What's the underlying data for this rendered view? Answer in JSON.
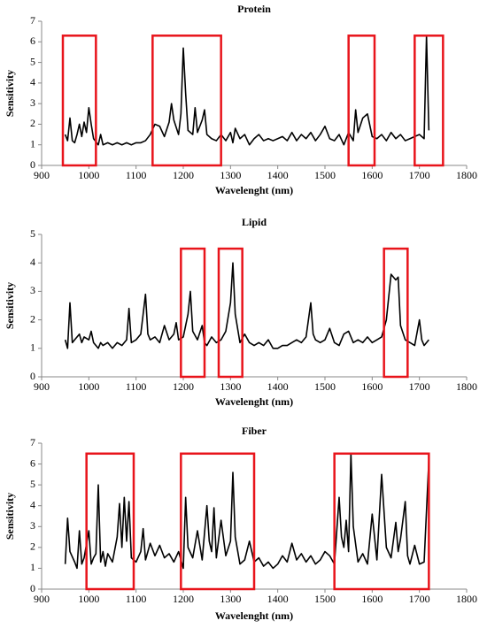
{
  "chart_data": [
    {
      "type": "line",
      "title": "Protein",
      "xlabel": "Wavelenght (nm)",
      "ylabel": "Sensitivity",
      "xlim": [
        900,
        1800
      ],
      "xticks": [
        900,
        1000,
        1100,
        1200,
        1300,
        1400,
        1500,
        1600,
        1700,
        1800
      ],
      "ylim": [
        0,
        7
      ],
      "yticks": [
        0,
        1,
        2,
        3,
        4,
        5,
        6,
        7
      ],
      "color": "#000000",
      "highlight_color": "#e8141b",
      "x": [
        950,
        955,
        960,
        965,
        970,
        975,
        980,
        985,
        990,
        995,
        1000,
        1005,
        1010,
        1020,
        1025,
        1030,
        1040,
        1050,
        1060,
        1070,
        1080,
        1090,
        1100,
        1110,
        1120,
        1130,
        1140,
        1150,
        1160,
        1170,
        1175,
        1180,
        1190,
        1195,
        1200,
        1205,
        1210,
        1220,
        1225,
        1230,
        1240,
        1245,
        1250,
        1260,
        1270,
        1280,
        1290,
        1300,
        1305,
        1310,
        1320,
        1330,
        1340,
        1350,
        1360,
        1370,
        1380,
        1390,
        1400,
        1410,
        1420,
        1430,
        1440,
        1450,
        1460,
        1470,
        1480,
        1490,
        1500,
        1510,
        1520,
        1530,
        1540,
        1550,
        1560,
        1565,
        1570,
        1580,
        1590,
        1600,
        1610,
        1620,
        1630,
        1640,
        1650,
        1660,
        1670,
        1680,
        1690,
        1700,
        1710,
        1715,
        1720
      ],
      "values": [
        1.5,
        1.2,
        2.3,
        1.2,
        1.1,
        1.5,
        2.0,
        1.4,
        2.1,
        1.6,
        2.8,
        2.0,
        1.3,
        1.0,
        1.5,
        1.0,
        1.1,
        1.0,
        1.1,
        1.0,
        1.1,
        1.0,
        1.1,
        1.1,
        1.2,
        1.5,
        2.0,
        1.9,
        1.4,
        2.1,
        3.0,
        2.2,
        1.5,
        2.5,
        5.7,
        3.5,
        1.7,
        1.5,
        2.8,
        1.6,
        2.2,
        2.7,
        1.5,
        1.3,
        1.2,
        1.5,
        1.2,
        1.6,
        1.1,
        1.8,
        1.3,
        1.5,
        1.0,
        1.3,
        1.5,
        1.2,
        1.3,
        1.2,
        1.3,
        1.4,
        1.2,
        1.6,
        1.2,
        1.5,
        1.3,
        1.6,
        1.2,
        1.5,
        1.9,
        1.3,
        1.2,
        1.5,
        1.0,
        1.6,
        1.2,
        2.7,
        1.6,
        2.3,
        2.5,
        1.4,
        1.3,
        1.5,
        1.2,
        1.6,
        1.3,
        1.5,
        1.2,
        1.3,
        1.4,
        1.5,
        1.3,
        6.3,
        1.7
      ],
      "highlights": [
        {
          "x": [
            945,
            1015
          ],
          "y": [
            0,
            6.3
          ]
        },
        {
          "x": [
            1135,
            1280
          ],
          "y": [
            0,
            6.3
          ]
        },
        {
          "x": [
            1550,
            1605
          ],
          "y": [
            0,
            6.3
          ]
        },
        {
          "x": [
            1690,
            1750
          ],
          "y": [
            0,
            6.3
          ]
        }
      ]
    },
    {
      "type": "line",
      "title": "Lipid",
      "xlabel": "Wavelenght (nm)",
      "ylabel": "Sensitivity",
      "xlim": [
        900,
        1800
      ],
      "xticks": [
        900,
        1000,
        1100,
        1200,
        1300,
        1400,
        1500,
        1600,
        1700,
        1800
      ],
      "ylim": [
        0,
        5
      ],
      "yticks": [
        0,
        1,
        2,
        3,
        4,
        5
      ],
      "color": "#000000",
      "highlight_color": "#e8141b",
      "x": [
        950,
        955,
        960,
        965,
        970,
        980,
        985,
        990,
        1000,
        1005,
        1010,
        1020,
        1025,
        1030,
        1040,
        1050,
        1060,
        1070,
        1080,
        1085,
        1090,
        1100,
        1110,
        1120,
        1125,
        1130,
        1140,
        1150,
        1160,
        1170,
        1180,
        1185,
        1190,
        1200,
        1210,
        1215,
        1220,
        1230,
        1240,
        1245,
        1250,
        1260,
        1270,
        1280,
        1290,
        1300,
        1305,
        1310,
        1320,
        1330,
        1340,
        1350,
        1360,
        1370,
        1380,
        1390,
        1400,
        1410,
        1420,
        1430,
        1440,
        1450,
        1460,
        1470,
        1475,
        1480,
        1490,
        1500,
        1510,
        1520,
        1530,
        1540,
        1550,
        1560,
        1570,
        1580,
        1590,
        1600,
        1610,
        1620,
        1630,
        1640,
        1650,
        1655,
        1660,
        1670,
        1680,
        1690,
        1700,
        1705,
        1710,
        1720
      ],
      "values": [
        1.3,
        1.0,
        2.6,
        1.2,
        1.3,
        1.5,
        1.2,
        1.4,
        1.3,
        1.6,
        1.2,
        1.0,
        1.2,
        1.1,
        1.2,
        1.0,
        1.2,
        1.1,
        1.3,
        2.4,
        1.2,
        1.3,
        1.5,
        2.9,
        1.5,
        1.3,
        1.4,
        1.2,
        1.8,
        1.3,
        1.5,
        1.9,
        1.3,
        1.4,
        2.2,
        3.0,
        1.6,
        1.3,
        1.8,
        1.2,
        1.1,
        1.4,
        1.2,
        1.3,
        1.6,
        2.6,
        4.0,
        2.2,
        1.2,
        1.5,
        1.2,
        1.1,
        1.2,
        1.1,
        1.3,
        1.0,
        1.0,
        1.1,
        1.1,
        1.2,
        1.3,
        1.2,
        1.4,
        2.6,
        1.5,
        1.3,
        1.2,
        1.3,
        1.7,
        1.2,
        1.1,
        1.5,
        1.6,
        1.2,
        1.3,
        1.2,
        1.4,
        1.2,
        1.3,
        1.4,
        2.0,
        3.6,
        3.4,
        3.5,
        1.8,
        1.3,
        1.2,
        1.1,
        2.0,
        1.3,
        1.1,
        1.3
      ],
      "highlights": [
        {
          "x": [
            1195,
            1245
          ],
          "y": [
            0,
            4.5
          ]
        },
        {
          "x": [
            1275,
            1325
          ],
          "y": [
            0,
            4.5
          ]
        },
        {
          "x": [
            1625,
            1675
          ],
          "y": [
            0,
            4.5
          ]
        }
      ]
    },
    {
      "type": "line",
      "title": "Fiber",
      "xlabel": "Wavelenght (nm)",
      "ylabel": "Sensitivity",
      "xlim": [
        900,
        1800
      ],
      "xticks": [
        900,
        1000,
        1100,
        1200,
        1300,
        1400,
        1500,
        1600,
        1700,
        1800
      ],
      "ylim": [
        0,
        7
      ],
      "yticks": [
        0,
        1,
        2,
        3,
        4,
        5,
        6,
        7
      ],
      "color": "#000000",
      "highlight_color": "#e8141b",
      "x": [
        950,
        955,
        960,
        970,
        975,
        980,
        985,
        990,
        1000,
        1005,
        1010,
        1015,
        1020,
        1025,
        1030,
        1035,
        1040,
        1050,
        1060,
        1065,
        1070,
        1075,
        1080,
        1085,
        1090,
        1100,
        1110,
        1115,
        1120,
        1130,
        1140,
        1150,
        1160,
        1170,
        1180,
        1190,
        1200,
        1205,
        1210,
        1220,
        1230,
        1240,
        1250,
        1255,
        1260,
        1265,
        1270,
        1280,
        1290,
        1300,
        1305,
        1310,
        1320,
        1330,
        1340,
        1350,
        1360,
        1370,
        1380,
        1390,
        1400,
        1410,
        1420,
        1430,
        1440,
        1450,
        1460,
        1470,
        1480,
        1490,
        1500,
        1510,
        1520,
        1530,
        1535,
        1540,
        1545,
        1550,
        1555,
        1560,
        1570,
        1580,
        1590,
        1600,
        1610,
        1620,
        1630,
        1640,
        1650,
        1655,
        1660,
        1670,
        1675,
        1680,
        1690,
        1700,
        1710,
        1720
      ],
      "values": [
        1.2,
        3.4,
        1.8,
        1.3,
        1.0,
        2.8,
        1.2,
        1.5,
        2.8,
        1.2,
        1.5,
        1.7,
        5.0,
        1.3,
        1.8,
        1.1,
        1.7,
        1.3,
        2.5,
        4.1,
        2.0,
        4.4,
        2.3,
        4.2,
        1.5,
        1.3,
        1.8,
        2.9,
        1.4,
        2.2,
        1.6,
        2.1,
        1.5,
        1.7,
        1.3,
        1.8,
        1.0,
        4.4,
        2.0,
        1.5,
        2.8,
        1.4,
        4.0,
        2.3,
        1.8,
        3.9,
        1.5,
        3.3,
        1.6,
        2.3,
        5.6,
        2.5,
        1.2,
        1.4,
        2.3,
        1.3,
        1.5,
        1.1,
        1.3,
        1.0,
        1.2,
        1.6,
        1.3,
        2.2,
        1.4,
        1.7,
        1.3,
        1.6,
        1.2,
        1.4,
        1.8,
        1.6,
        1.2,
        4.4,
        2.5,
        2.0,
        3.3,
        1.8,
        6.5,
        3.0,
        1.3,
        1.7,
        1.2,
        3.6,
        1.4,
        5.5,
        2.0,
        1.5,
        3.2,
        1.8,
        2.4,
        4.2,
        1.6,
        1.2,
        2.1,
        1.2,
        1.3,
        6.2
      ],
      "highlights": [
        {
          "x": [
            995,
            1095
          ],
          "y": [
            0,
            6.5
          ]
        },
        {
          "x": [
            1195,
            1350
          ],
          "y": [
            0,
            6.5
          ]
        },
        {
          "x": [
            1520,
            1720
          ],
          "y": [
            0,
            6.5
          ]
        }
      ]
    }
  ]
}
